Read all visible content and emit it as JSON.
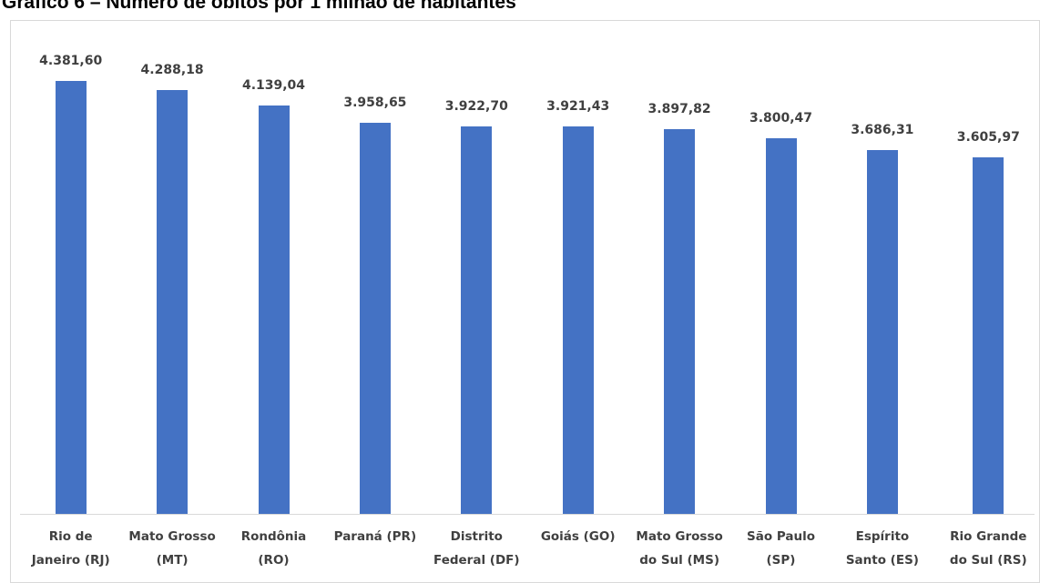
{
  "chart_data": {
    "type": "bar",
    "title": "Gráfico 6 – Número de óbitos por 1 milhão de habitantes",
    "categories": [
      "Rio de\nJaneiro (RJ)",
      "Mato Grosso\n(MT)",
      "Rondônia\n(RO)",
      "Paraná (PR)",
      "Distrito\nFederal (DF)",
      "Goiás (GO)",
      "Mato Grosso\ndo Sul (MS)",
      "São Paulo\n(SP)",
      "Espírito\nSanto (ES)",
      "Rio Grande\ndo Sul (RS)"
    ],
    "values": [
      4381.6,
      4288.18,
      4139.04,
      3958.65,
      3922.7,
      3921.43,
      3897.82,
      3800.47,
      3686.31,
      3605.97
    ],
    "value_labels": [
      "4.381,60",
      "4.288,18",
      "4.139,04",
      "3.958,65",
      "3.922,70",
      "3.921,43",
      "3.897,82",
      "3.800,47",
      "3.686,31",
      "3.605,97"
    ],
    "color": "#4472c4",
    "ylim": [
      0,
      5000
    ]
  }
}
